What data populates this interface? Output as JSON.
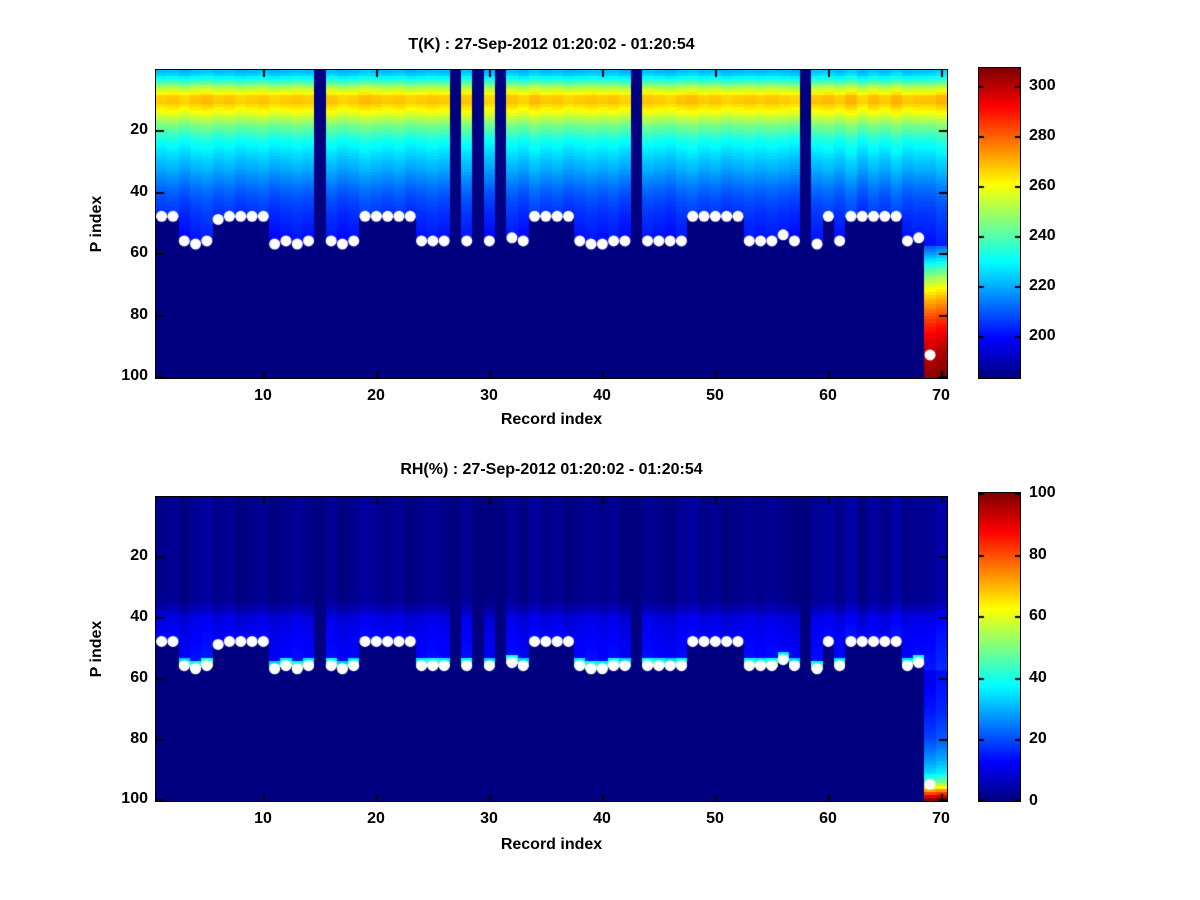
{
  "figure": {
    "background": "#ffffff",
    "text_color": "#000000",
    "navy_nodata_color": "#000080",
    "dot_color": "#ffffff"
  },
  "chart_data": [
    {
      "type": "heatmap",
      "title": "T(K) : 27-Sep-2012 01:20:02 - 01:20:54",
      "xlabel": "Record index",
      "ylabel": "P index",
      "n_records": 70,
      "n_levels": 100,
      "x_axis": {
        "range": [
          1,
          70
        ],
        "ticks": [
          10,
          20,
          30,
          40,
          50,
          60,
          70
        ]
      },
      "y_axis": {
        "range": [
          1,
          100
        ],
        "ticks": [
          20,
          40,
          60,
          80,
          100
        ],
        "direction": "down"
      },
      "colormap": "jet",
      "caxis": [
        183,
        307
      ],
      "colorbar_ticks": [
        300,
        280,
        260,
        240,
        220,
        200
      ],
      "legend": "white dots mark lowest valid P index per record",
      "missing_records": [
        15,
        27,
        29,
        31,
        43,
        58
      ],
      "deep_records": [
        69,
        70
      ],
      "records_without_dot": [
        70
      ],
      "surface_p_by_record": [
        48,
        48,
        56,
        57,
        56,
        49,
        48,
        48,
        48,
        48,
        57,
        56,
        57,
        56,
        null,
        56,
        57,
        56,
        48,
        48,
        48,
        48,
        48,
        56,
        56,
        56,
        null,
        56,
        null,
        56,
        null,
        55,
        56,
        48,
        48,
        48,
        48,
        56,
        57,
        57,
        56,
        56,
        null,
        56,
        56,
        56,
        56,
        48,
        48,
        48,
        48,
        48,
        56,
        56,
        56,
        54,
        56,
        null,
        57,
        48,
        56,
        48,
        48,
        48,
        48,
        48,
        56,
        55,
        93,
        100
      ],
      "profile": {
        "p": [
          1,
          2,
          4,
          6,
          8,
          9,
          11,
          13,
          15,
          17,
          20,
          23,
          27,
          31,
          35,
          39,
          43,
          47,
          51,
          55,
          57
        ],
        "value": [
          221,
          224,
          234,
          248,
          261,
          266,
          267,
          262,
          256,
          249,
          239,
          232,
          226,
          221,
          216,
          211,
          207,
          204,
          202,
          200,
          199
        ]
      },
      "deep_profile": {
        "p": [
          57,
          60,
          63,
          67,
          71,
          75,
          79,
          83,
          88,
          93,
          100
        ],
        "value": [
          206,
          216,
          228,
          243,
          257,
          268,
          277,
          286,
          293,
          299,
          304
        ]
      },
      "record_offsets": [
        0,
        1,
        -1,
        1,
        2,
        0,
        1,
        -1,
        0,
        1,
        -1,
        0,
        1,
        0,
        0,
        1,
        -1,
        0,
        2,
        1,
        0,
        1,
        -1,
        0,
        1,
        0,
        0,
        1,
        0,
        -1,
        0,
        1,
        -1,
        2,
        0,
        1,
        -1,
        0,
        1,
        0,
        1,
        -1,
        0,
        1,
        0,
        -1,
        1,
        2,
        0,
        1,
        -1,
        0,
        1,
        0,
        1,
        0,
        -1,
        0,
        1,
        2,
        0,
        3,
        -1,
        2,
        0,
        3,
        0,
        1,
        1,
        3
      ]
    },
    {
      "type": "heatmap",
      "title": "RH(%) : 27-Sep-2012 01:20:02 - 01:20:54",
      "xlabel": "Record index",
      "ylabel": "P index",
      "n_records": 70,
      "n_levels": 100,
      "x_axis": {
        "range": [
          1,
          70
        ],
        "ticks": [
          10,
          20,
          30,
          40,
          50,
          60,
          70
        ]
      },
      "y_axis": {
        "range": [
          1,
          100
        ],
        "ticks": [
          20,
          40,
          60,
          80,
          100
        ],
        "direction": "down"
      },
      "colormap": "jet",
      "caxis": [
        0,
        100
      ],
      "colorbar_ticks": [
        100,
        80,
        60,
        40,
        20,
        0
      ],
      "legend": "white dots mark lowest valid P index per record",
      "missing_records": [
        15,
        27,
        29,
        31,
        43,
        58
      ],
      "deep_records": [
        69,
        70
      ],
      "records_without_dot": [
        70
      ],
      "surface_p_by_record": [
        48,
        48,
        56,
        57,
        56,
        49,
        48,
        48,
        48,
        48,
        57,
        56,
        57,
        56,
        null,
        56,
        57,
        56,
        48,
        48,
        48,
        48,
        48,
        56,
        56,
        56,
        null,
        56,
        null,
        56,
        null,
        55,
        56,
        48,
        48,
        48,
        48,
        56,
        57,
        57,
        56,
        56,
        null,
        56,
        56,
        56,
        56,
        48,
        48,
        48,
        48,
        48,
        56,
        56,
        56,
        54,
        56,
        null,
        57,
        48,
        56,
        48,
        48,
        48,
        48,
        48,
        56,
        55,
        95,
        100
      ],
      "profile": {
        "p": [
          1,
          34,
          37,
          40,
          45,
          50,
          55,
          57
        ],
        "value": [
          1,
          1,
          4,
          9,
          11,
          12,
          13,
          14
        ]
      },
      "deep_profile": {
        "p": [
          57,
          70,
          80,
          87,
          91,
          94,
          96,
          98,
          100
        ],
        "value": [
          10,
          13,
          18,
          26,
          33,
          45,
          60,
          80,
          98
        ]
      },
      "surface_spot": {
        "deep_surface_min_p": 53,
        "strong_value": 52,
        "weak_value": 13
      },
      "record_offsets": [
        0,
        1,
        -1,
        1,
        2,
        0,
        1,
        -1,
        0,
        1,
        -1,
        0,
        1,
        0,
        0,
        1,
        -1,
        0,
        2,
        1,
        0,
        1,
        -1,
        0,
        1,
        0,
        0,
        1,
        0,
        -1,
        0,
        1,
        -1,
        2,
        0,
        1,
        -1,
        0,
        1,
        0,
        1,
        -1,
        0,
        1,
        0,
        -1,
        1,
        2,
        0,
        1,
        -1,
        0,
        1,
        0,
        1,
        0,
        -1,
        0,
        1,
        2,
        0,
        3,
        -1,
        2,
        0,
        3,
        0,
        1,
        1,
        3
      ]
    }
  ]
}
